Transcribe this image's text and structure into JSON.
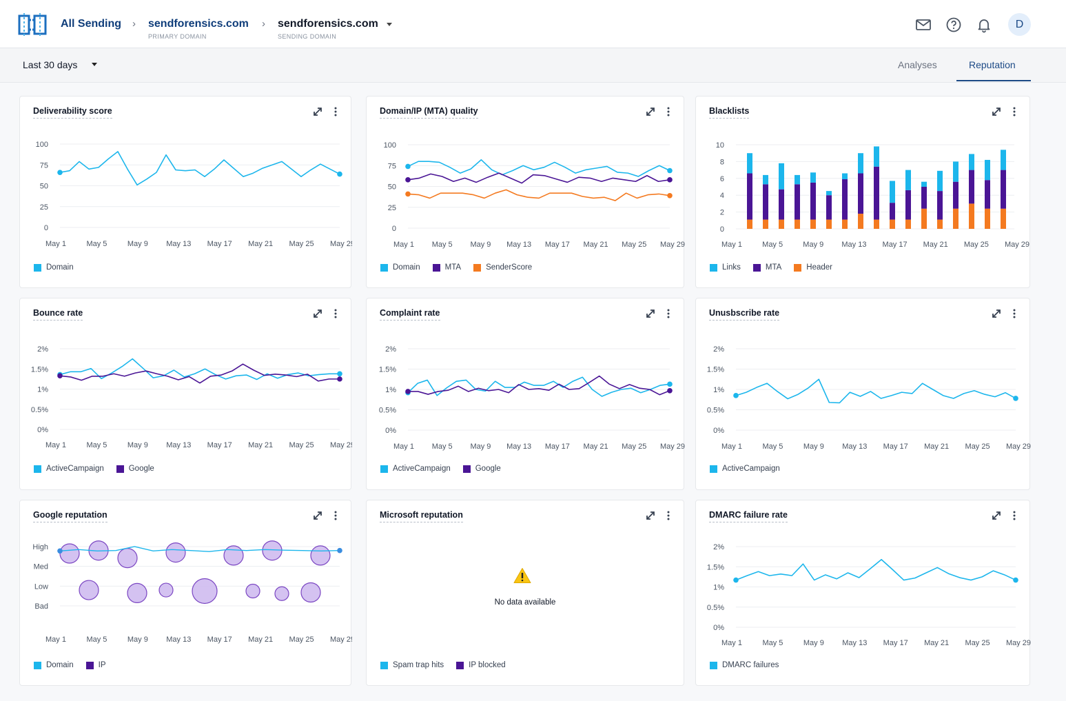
{
  "header": {
    "breadcrumb_all": "All Sending",
    "primary_domain": "sendforensics.com",
    "primary_domain_caption": "PRIMARY DOMAIN",
    "sending_domain": "sendforensics.com",
    "sending_domain_caption": "SENDING DOMAIN",
    "avatar_initial": "D",
    "icons": [
      "mail-icon",
      "help-icon",
      "bell-icon"
    ]
  },
  "toolbar": {
    "date_range": "Last 30 days",
    "tabs": [
      {
        "label": "Analyses",
        "active": false
      },
      {
        "label": "Reputation",
        "active": true
      }
    ]
  },
  "colors": {
    "cyan": "#1cb6ec",
    "purple": "#4a1595",
    "orange": "#f47a20",
    "bubble_fill": "#cdb7ee",
    "bubble_stroke": "#7a45c2",
    "brand": "#1c4a86"
  },
  "chart_data": [
    {
      "id": "deliverability",
      "title": "Deliverability score",
      "type": "line",
      "x_ticks": [
        "May 1",
        "May 5",
        "May 9",
        "May 13",
        "May 17",
        "May 21",
        "May 25",
        "May 29"
      ],
      "y_ticks": [
        "100",
        "75",
        "50",
        "25",
        "0"
      ],
      "ylim": [
        0,
        100
      ],
      "series": [
        {
          "name": "Domain",
          "color": "#1cb6ec",
          "values": [
            66,
            68,
            79,
            70,
            72,
            82,
            91,
            70,
            51,
            58,
            66,
            87,
            69,
            68,
            69,
            61,
            70,
            81,
            71,
            61,
            65,
            71,
            75,
            79,
            70,
            61,
            69,
            76,
            70,
            64
          ]
        }
      ]
    },
    {
      "id": "mta-quality",
      "title": "Domain/IP (MTA) quality",
      "type": "line",
      "x_ticks": [
        "May 1",
        "May 5",
        "May 9",
        "May 13",
        "May 17",
        "May 21",
        "May 25",
        "May 29"
      ],
      "y_ticks": [
        "100",
        "75",
        "50",
        "25",
        "0"
      ],
      "ylim": [
        0,
        100
      ],
      "series": [
        {
          "name": "Domain",
          "color": "#1cb6ec",
          "values": [
            74,
            80,
            80,
            79,
            73,
            66,
            71,
            82,
            70,
            64,
            69,
            75,
            70,
            73,
            79,
            73,
            66,
            70,
            72,
            74,
            67,
            66,
            62,
            69,
            75,
            69
          ]
        },
        {
          "name": "MTA",
          "color": "#4a1595",
          "values": [
            58,
            60,
            65,
            62,
            56,
            60,
            55,
            61,
            66,
            60,
            54,
            64,
            63,
            59,
            55,
            61,
            60,
            56,
            60,
            58,
            56,
            63,
            56,
            58
          ]
        },
        {
          "name": "SenderScore",
          "color": "#f47a20",
          "values": [
            41,
            40,
            36,
            42,
            42,
            42,
            40,
            36,
            42,
            46,
            40,
            37,
            36,
            42,
            42,
            42,
            38,
            36,
            37,
            33,
            42,
            36,
            40,
            41,
            39
          ]
        }
      ]
    },
    {
      "id": "blacklists",
      "title": "Blacklists",
      "type": "bar",
      "stacked": true,
      "x_ticks": [
        "May 1",
        "May 5",
        "May 9",
        "May 13",
        "May 17",
        "May 21",
        "May 25",
        "May 29"
      ],
      "y_ticks": [
        "10",
        "8",
        "6",
        "4",
        "2",
        "0"
      ],
      "ylim": [
        0,
        10
      ],
      "series": [
        {
          "name": "Links",
          "color": "#1cb6ec",
          "values": [
            2.4,
            1.1,
            3.1,
            1.1,
            1.2,
            0.5,
            0.7,
            2.4,
            2.4,
            2.6,
            2.4,
            0.6,
            2.4,
            2.4,
            1.9,
            2.4,
            2.4
          ]
        },
        {
          "name": "MTA",
          "color": "#4a1595",
          "values": [
            5.5,
            4.2,
            3.6,
            4.2,
            4.4,
            2.9,
            4.8,
            4.8,
            6.3,
            2.0,
            3.5,
            2.6,
            3.4,
            3.2,
            4.0,
            3.4,
            4.6
          ]
        },
        {
          "name": "Header",
          "color": "#f47a20",
          "values": [
            1.1,
            1.1,
            1.1,
            1.1,
            1.1,
            1.1,
            1.1,
            1.8,
            1.1,
            1.1,
            1.1,
            2.4,
            1.1,
            2.4,
            3.0,
            2.4,
            2.4
          ]
        }
      ]
    },
    {
      "id": "bounce",
      "title": "Bounce rate",
      "type": "line",
      "x_ticks": [
        "May 1",
        "May 5",
        "May 9",
        "May 13",
        "May 17",
        "May 21",
        "May 25",
        "May 29"
      ],
      "y_ticks": [
        "2%",
        "1.5%",
        "1%",
        "0.5%",
        "0%"
      ],
      "ylim": [
        0,
        2
      ],
      "series": [
        {
          "name": "ActiveCampaign",
          "color": "#1cb6ec",
          "values": [
            1.36,
            1.43,
            1.43,
            1.51,
            1.26,
            1.4,
            1.56,
            1.75,
            1.52,
            1.28,
            1.33,
            1.47,
            1.3,
            1.38,
            1.5,
            1.36,
            1.25,
            1.33,
            1.35,
            1.24,
            1.38,
            1.27,
            1.36,
            1.4,
            1.33,
            1.36,
            1.38,
            1.38
          ]
        },
        {
          "name": "Google",
          "color": "#4a1595",
          "values": [
            1.33,
            1.3,
            1.22,
            1.32,
            1.32,
            1.38,
            1.32,
            1.4,
            1.45,
            1.38,
            1.32,
            1.23,
            1.31,
            1.15,
            1.32,
            1.35,
            1.45,
            1.62,
            1.47,
            1.34,
            1.37,
            1.35,
            1.31,
            1.37,
            1.2,
            1.25,
            1.25
          ]
        }
      ]
    },
    {
      "id": "complaint",
      "title": "Complaint rate",
      "type": "line",
      "x_ticks": [
        "May 1",
        "May 5",
        "May 9",
        "May 13",
        "May 17",
        "May 21",
        "May 25",
        "May 29"
      ],
      "y_ticks": [
        "2%",
        "1.5%",
        "1%",
        "0.5%",
        "0%"
      ],
      "ylim": [
        0,
        2
      ],
      "series": [
        {
          "name": "ActiveCampaign",
          "color": "#1cb6ec",
          "values": [
            0.92,
            1.15,
            1.23,
            0.85,
            1.04,
            1.2,
            1.23,
            1.0,
            0.96,
            1.2,
            1.05,
            1.05,
            1.18,
            1.1,
            1.1,
            1.2,
            1.05,
            1.2,
            1.3,
            1.0,
            0.83,
            0.93,
            1.0,
            1.03,
            0.92,
            1.0,
            1.1,
            1.13
          ]
        },
        {
          "name": "Google",
          "color": "#4a1595",
          "values": [
            0.95,
            0.95,
            0.88,
            0.95,
            0.98,
            1.08,
            0.95,
            1.03,
            0.97,
            1.0,
            0.92,
            1.12,
            1.0,
            1.02,
            0.98,
            1.13,
            1.0,
            1.02,
            1.17,
            1.33,
            1.13,
            1.02,
            1.12,
            1.03,
            1.0,
            0.87,
            0.97
          ]
        }
      ]
    },
    {
      "id": "unsubscribe",
      "title": "Unusbscribe rate",
      "type": "line",
      "x_ticks": [
        "May 1",
        "May 5",
        "May 9",
        "May 13",
        "May 17",
        "May 21",
        "May 25",
        "May 29"
      ],
      "y_ticks": [
        "2%",
        "1.5%",
        "1%",
        "0.5%",
        "0%"
      ],
      "ylim": [
        0,
        2
      ],
      "series": [
        {
          "name": "ActiveCampaign",
          "color": "#1cb6ec",
          "values": [
            0.85,
            0.93,
            1.05,
            1.15,
            0.95,
            0.77,
            0.88,
            1.04,
            1.25,
            0.68,
            0.67,
            0.93,
            0.83,
            0.95,
            0.78,
            0.85,
            0.93,
            0.9,
            1.15,
            1.0,
            0.85,
            0.78,
            0.9,
            0.97,
            0.88,
            0.82,
            0.92,
            0.78
          ]
        }
      ]
    },
    {
      "id": "google-reputation",
      "title": "Google reputation",
      "type": "scatter",
      "x_ticks": [
        "May 1",
        "May 5",
        "May 9",
        "May 13",
        "May 17",
        "May 21",
        "May 25",
        "May 29"
      ],
      "y_ticks": [
        "High",
        "Med",
        "Low",
        "Bad"
      ],
      "series": [
        {
          "name": "Domain",
          "color": "#1cb6ec",
          "values": [
            2.78,
            2.85,
            2.78,
            2.8,
            3.0,
            2.78,
            2.85,
            2.8,
            2.75,
            2.85,
            2.8,
            2.85,
            2.82,
            2.8,
            2.78,
            2.8
          ]
        },
        {
          "name": "IP",
          "color": "#4a1595",
          "points": [
            {
              "day": 2,
              "level": 2.65,
              "size": 2
            },
            {
              "day": 5,
              "level": 2.8,
              "size": 2
            },
            {
              "day": 8,
              "level": 2.42,
              "size": 2
            },
            {
              "day": 13,
              "level": 2.7,
              "size": 2
            },
            {
              "day": 19,
              "level": 2.55,
              "size": 2
            },
            {
              "day": 23,
              "level": 2.8,
              "size": 2
            },
            {
              "day": 28,
              "level": 2.55,
              "size": 2
            },
            {
              "day": 4,
              "level": 0.8,
              "size": 2
            },
            {
              "day": 9,
              "level": 0.65,
              "size": 2
            },
            {
              "day": 12,
              "level": 0.8,
              "size": 1
            },
            {
              "day": 16,
              "level": 0.75,
              "size": 3
            },
            {
              "day": 21,
              "level": 0.75,
              "size": 1
            },
            {
              "day": 24,
              "level": 0.62,
              "size": 1
            },
            {
              "day": 27,
              "level": 0.68,
              "size": 2
            }
          ]
        }
      ]
    },
    {
      "id": "microsoft-reputation",
      "title": "Microsoft reputation",
      "type": "line",
      "empty_message": "No data available",
      "series": [
        {
          "name": "Spam trap hits",
          "color": "#1cb6ec",
          "values": []
        },
        {
          "name": "IP blocked",
          "color": "#4a1595",
          "values": []
        }
      ]
    },
    {
      "id": "dmarc",
      "title": "DMARC failure rate",
      "type": "line",
      "x_ticks": [
        "May 1",
        "May 5",
        "May 9",
        "May 13",
        "May 17",
        "May 21",
        "May 25",
        "May 29"
      ],
      "y_ticks": [
        "2%",
        "1.5%",
        "1%",
        "0.5%",
        "0%"
      ],
      "ylim": [
        0,
        2
      ],
      "series": [
        {
          "name": "DMARC failures",
          "color": "#1cb6ec",
          "values": [
            1.17,
            1.28,
            1.38,
            1.28,
            1.32,
            1.28,
            1.57,
            1.17,
            1.3,
            1.2,
            1.35,
            1.23,
            1.45,
            1.68,
            1.43,
            1.17,
            1.22,
            1.35,
            1.48,
            1.33,
            1.23,
            1.17,
            1.25,
            1.4,
            1.3,
            1.17
          ]
        }
      ]
    }
  ]
}
